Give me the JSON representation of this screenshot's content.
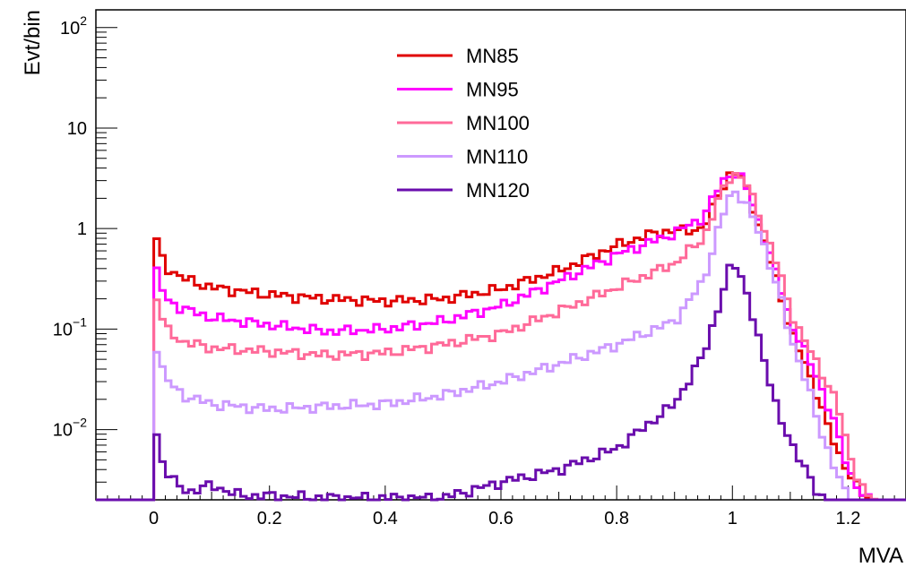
{
  "chart_data": {
    "type": "line",
    "xlabel": "MVA",
    "ylabel": "Evt/bin",
    "xlim": [
      -0.1,
      1.3
    ],
    "ylim": [
      0.002,
      150
    ],
    "y_scale": "log",
    "grid": false,
    "legend_position": "top-center",
    "bin_width": 0.01,
    "x_ticks": [
      0,
      0.2,
      0.4,
      0.6,
      0.8,
      1,
      1.2
    ],
    "x_tick_labels": [
      "0",
      "0.2",
      "0.4",
      "0.6",
      "0.8",
      "1",
      "1.2"
    ],
    "y_ticks": [
      {
        "value": 0.01,
        "base": "10",
        "exp": "−2",
        "text": ""
      },
      {
        "value": 0.1,
        "base": "10",
        "exp": "−1",
        "text": ""
      },
      {
        "value": 1,
        "base": "",
        "exp": "",
        "text": "1"
      },
      {
        "value": 10,
        "base": "",
        "exp": "",
        "text": "10"
      },
      {
        "value": 100,
        "base": "10",
        "exp": "2",
        "text": ""
      }
    ],
    "series": [
      {
        "name": "MN85",
        "color": "#e00000",
        "points": [
          [
            0.0,
            0.95
          ],
          [
            0.01,
            0.6
          ],
          [
            0.02,
            0.42
          ],
          [
            0.05,
            0.32
          ],
          [
            0.1,
            0.26
          ],
          [
            0.2,
            0.22
          ],
          [
            0.3,
            0.2
          ],
          [
            0.4,
            0.19
          ],
          [
            0.5,
            0.2
          ],
          [
            0.6,
            0.25
          ],
          [
            0.7,
            0.38
          ],
          [
            0.8,
            0.68
          ],
          [
            0.87,
            0.92
          ],
          [
            0.95,
            1.0
          ],
          [
            0.98,
            2.5
          ],
          [
            1.0,
            3.8
          ],
          [
            1.02,
            3.0
          ],
          [
            1.05,
            0.9
          ],
          [
            1.08,
            0.25
          ],
          [
            1.1,
            0.1
          ],
          [
            1.15,
            0.02
          ],
          [
            1.18,
            0.006
          ],
          [
            1.2,
            0.004
          ],
          [
            1.23,
            0.002
          ]
        ]
      },
      {
        "name": "MN95",
        "color": "#ff00ff",
        "points": [
          [
            0.0,
            0.45
          ],
          [
            0.01,
            0.3
          ],
          [
            0.02,
            0.2
          ],
          [
            0.05,
            0.16
          ],
          [
            0.1,
            0.13
          ],
          [
            0.2,
            0.11
          ],
          [
            0.3,
            0.095
          ],
          [
            0.4,
            0.1
          ],
          [
            0.5,
            0.12
          ],
          [
            0.6,
            0.17
          ],
          [
            0.7,
            0.3
          ],
          [
            0.8,
            0.55
          ],
          [
            0.9,
            0.9
          ],
          [
            0.95,
            1.3
          ],
          [
            0.98,
            2.8
          ],
          [
            1.0,
            3.7
          ],
          [
            1.02,
            3.0
          ],
          [
            1.05,
            1.0
          ],
          [
            1.08,
            0.3
          ],
          [
            1.1,
            0.12
          ],
          [
            1.15,
            0.03
          ],
          [
            1.18,
            0.01
          ],
          [
            1.2,
            0.004
          ],
          [
            1.23,
            0.002
          ]
        ]
      },
      {
        "name": "MN100",
        "color": "#ff6a99",
        "points": [
          [
            0.0,
            0.26
          ],
          [
            0.01,
            0.16
          ],
          [
            0.02,
            0.1
          ],
          [
            0.05,
            0.075
          ],
          [
            0.1,
            0.065
          ],
          [
            0.2,
            0.06
          ],
          [
            0.3,
            0.055
          ],
          [
            0.4,
            0.058
          ],
          [
            0.5,
            0.07
          ],
          [
            0.6,
            0.09
          ],
          [
            0.7,
            0.15
          ],
          [
            0.8,
            0.26
          ],
          [
            0.9,
            0.45
          ],
          [
            0.95,
            0.8
          ],
          [
            0.98,
            2.2
          ],
          [
            1.0,
            3.6
          ],
          [
            1.02,
            3.2
          ],
          [
            1.05,
            1.2
          ],
          [
            1.08,
            0.4
          ],
          [
            1.1,
            0.15
          ],
          [
            1.15,
            0.04
          ],
          [
            1.18,
            0.02
          ],
          [
            1.2,
            0.006
          ],
          [
            1.22,
            0.003
          ],
          [
            1.24,
            0.002
          ]
        ]
      },
      {
        "name": "MN110",
        "color": "#cc99ff",
        "points": [
          [
            0.0,
            0.09
          ],
          [
            0.01,
            0.05
          ],
          [
            0.02,
            0.032
          ],
          [
            0.05,
            0.022
          ],
          [
            0.1,
            0.018
          ],
          [
            0.2,
            0.016
          ],
          [
            0.3,
            0.017
          ],
          [
            0.4,
            0.018
          ],
          [
            0.5,
            0.022
          ],
          [
            0.6,
            0.03
          ],
          [
            0.7,
            0.045
          ],
          [
            0.8,
            0.07
          ],
          [
            0.9,
            0.12
          ],
          [
            0.95,
            0.3
          ],
          [
            0.98,
            1.2
          ],
          [
            1.0,
            2.4
          ],
          [
            1.02,
            2.0
          ],
          [
            1.05,
            0.8
          ],
          [
            1.08,
            0.25
          ],
          [
            1.1,
            0.08
          ],
          [
            1.13,
            0.03
          ],
          [
            1.15,
            0.01
          ],
          [
            1.18,
            0.004
          ],
          [
            1.2,
            0.002
          ]
        ]
      },
      {
        "name": "MN120",
        "color": "#6a0dad",
        "points": [
          [
            0.0,
            0.013
          ],
          [
            0.01,
            0.006
          ],
          [
            0.02,
            0.004
          ],
          [
            0.04,
            0.0028
          ],
          [
            0.06,
            0.0024
          ],
          [
            0.08,
            0.0026
          ],
          [
            0.1,
            0.0028
          ],
          [
            0.15,
            0.0022
          ],
          [
            0.2,
            0.0022
          ],
          [
            0.3,
            0.0021
          ],
          [
            0.4,
            0.0021
          ],
          [
            0.5,
            0.0021
          ],
          [
            0.55,
            0.0025
          ],
          [
            0.6,
            0.003
          ],
          [
            0.7,
            0.004
          ],
          [
            0.8,
            0.0065
          ],
          [
            0.9,
            0.018
          ],
          [
            0.95,
            0.055
          ],
          [
            0.98,
            0.2
          ],
          [
            1.0,
            0.48
          ],
          [
            1.02,
            0.3
          ],
          [
            1.05,
            0.06
          ],
          [
            1.08,
            0.015
          ],
          [
            1.1,
            0.007
          ],
          [
            1.13,
            0.004
          ],
          [
            1.15,
            0.002
          ]
        ]
      }
    ]
  }
}
